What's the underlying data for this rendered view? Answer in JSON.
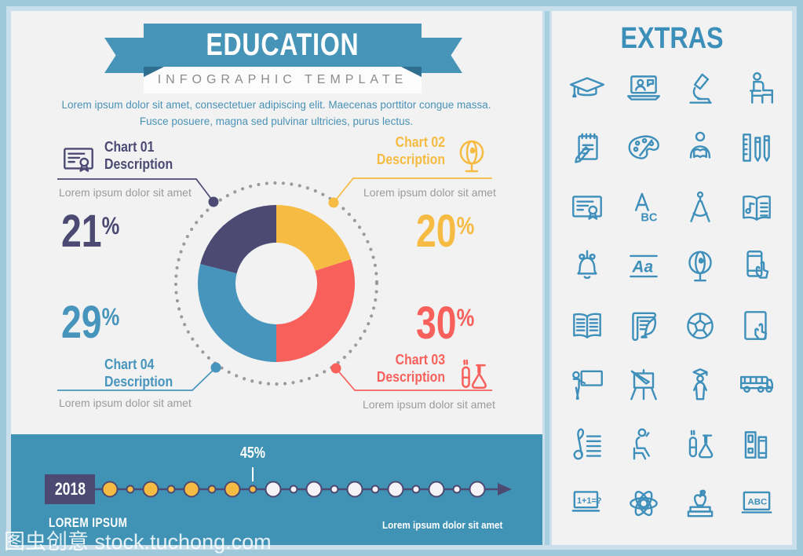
{
  "watermark": {
    "text": "图虫创意 stock.tuchong.com"
  },
  "header": {
    "title": "EDUCATION",
    "subtitle": "INFOGRAPHIC TEMPLATE",
    "description": "Lorem ipsum dolor sit amet, consectetuer adipiscing elit. Maecenas porttitor congue massa. Fusce posuere, magna sed pulvinar ultricies, purus lectus."
  },
  "chart_data": {
    "type": "pie",
    "donut": true,
    "start_angle_deg": -90,
    "direction": "clockwise",
    "dotted_ring": true,
    "segments": [
      {
        "id": "chart-02",
        "name": "Chart 02",
        "caption": "Description",
        "value_pct": 20,
        "percent_label": "20%",
        "color": "#F6BB42",
        "icon": "globe-icon",
        "note": "Lorem ipsum dolor sit amet"
      },
      {
        "id": "chart-03",
        "name": "Chart 03",
        "caption": "Description",
        "value_pct": 30,
        "percent_label": "30%",
        "color": "#F8605C",
        "icon": "chemistry-flask-icon",
        "note": "Lorem ipsum dolor sit amet"
      },
      {
        "id": "chart-04",
        "name": "Chart 04",
        "caption": "Description",
        "value_pct": 29,
        "percent_label": "29%",
        "color": "#4795BC",
        "icon": null,
        "note": "Lorem ipsum dolor sit amet"
      },
      {
        "id": "chart-01",
        "name": "Chart 01",
        "caption": "Description",
        "value_pct": 21,
        "percent_label": "21%",
        "color": "#4C4A72",
        "icon": "certificate-icon",
        "note": "Lorem ipsum dolor sit amet"
      }
    ]
  },
  "timeline": {
    "year": "2018",
    "progress_label": "45%",
    "caption_left": "LOREM IPSUM",
    "caption_right": "Lorem ipsum dolor sit amet",
    "dots": {
      "filled_count": 8,
      "empty_count": 11,
      "filled_color": "#F6BB42",
      "empty_color": "#F4F4F6",
      "outline_color": "#4C4A72"
    },
    "marker_dot_number": 8
  },
  "extras": {
    "title": "EXTRAS",
    "icons": [
      "graduation-cap-icon",
      "online-learning-icon",
      "microscope-icon",
      "student-desk-icon",
      "notepad-pencil-icon",
      "paint-palette-icon",
      "reading-person-icon",
      "ruler-pencils-icon",
      "certificate-icon",
      "abc-letters-icon",
      "drafting-compass-icon",
      "music-book-icon",
      "school-bell-icon",
      "handwriting-aa-icon",
      "globe-icon",
      "smartphone-touch-icon",
      "open-book-icon",
      "quill-scroll-icon",
      "soccer-ball-icon",
      "tablet-touch-icon",
      "teacher-board-icon",
      "easel-icon",
      "graduate-icon",
      "school-bus-icon",
      "treble-clef-icon",
      "student-sitting-icon",
      "chemistry-flask-icon",
      "books-shelf-icon",
      "math-equation-icon",
      "atom-icon",
      "apple-books-icon",
      "abc-board-icon"
    ]
  },
  "colors": {
    "frame_outer": "#9FC8DB",
    "frame_inner": "#C9E0EC",
    "divider": "#A8CFE0",
    "panel_bg": "#F2F2F3",
    "ribbon": "#4695B8",
    "ribbon_fold": "#2E6E8E",
    "subtitle_bg": "#FCFCFC",
    "subtitle_text": "#8C8C8C",
    "intro_text": "#4A92B6",
    "note_text": "#9B9B9B",
    "ring_dots": "#9B9B9B",
    "band": "#4193B5",
    "icon_blue": "#3E8FBA",
    "extras_title": "#3B8FB8"
  }
}
